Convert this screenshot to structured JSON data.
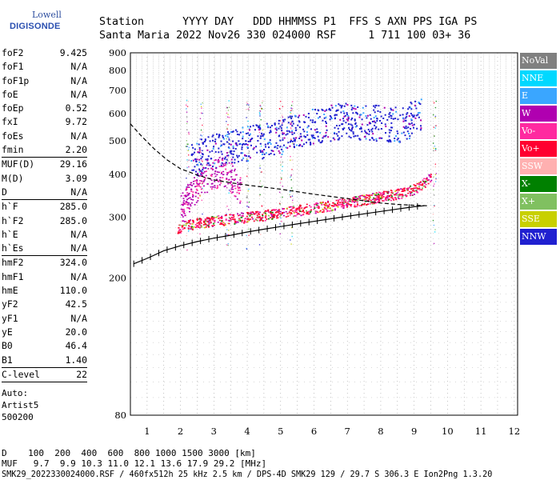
{
  "logo": {
    "line1": "Lowell",
    "line2": "DIGISONDE"
  },
  "header": {
    "row1": "Station      YYYY DAY   DDD HHMMSS P1  FFS S AXN PPS IGA PS",
    "row2": "Santa Maria 2022 Nov26 330 024000 RSF     1 711 100 03+ 36"
  },
  "params": [
    {
      "name": "foF2",
      "value": "9.425"
    },
    {
      "name": "foF1",
      "value": "N/A"
    },
    {
      "name": "foF1p",
      "value": "N/A"
    },
    {
      "name": "foE",
      "value": "N/A"
    },
    {
      "name": "foEp",
      "value": "0.52"
    },
    {
      "name": "fxI",
      "value": "9.72"
    },
    {
      "name": "foEs",
      "value": "N/A"
    },
    {
      "name": "fmin",
      "value": "2.20",
      "sep": true
    },
    {
      "name": "MUF(D)",
      "value": "29.16"
    },
    {
      "name": "M(D)",
      "value": "3.09"
    },
    {
      "name": "D",
      "value": "N/A",
      "sep": true
    },
    {
      "name": "h`F",
      "value": "285.0"
    },
    {
      "name": "h`F2",
      "value": "285.0"
    },
    {
      "name": "h`E",
      "value": "N/A"
    },
    {
      "name": "h`Es",
      "value": "N/A",
      "sep": true
    },
    {
      "name": "hmF2",
      "value": "324.0"
    },
    {
      "name": "hmF1",
      "value": "N/A"
    },
    {
      "name": "hmE",
      "value": "110.0"
    },
    {
      "name": "yF2",
      "value": "42.5"
    },
    {
      "name": "yF1",
      "value": "N/A"
    },
    {
      "name": "yE",
      "value": "20.0"
    },
    {
      "name": "B0",
      "value": "46.4"
    },
    {
      "name": "B1",
      "value": "1.40",
      "sep": true
    },
    {
      "name": "C-level",
      "value": "22",
      "sep": true
    }
  ],
  "extra": [
    "Auto:",
    "Artist5",
    "500200"
  ],
  "legend": [
    {
      "label": "NoVal",
      "color": "#808080",
      "text": "#ffffff"
    },
    {
      "label": "NNE",
      "color": "#00d8ff",
      "text": "#ffffff"
    },
    {
      "label": "E",
      "color": "#3aa6ff",
      "text": "#ffffff"
    },
    {
      "label": "W",
      "color": "#b000b0",
      "text": "#ffffff"
    },
    {
      "label": "Vo-",
      "color": "#ff2aa0",
      "text": "#ffffff"
    },
    {
      "label": "Vo+",
      "color": "#ff0030",
      "text": "#ffffff"
    },
    {
      "label": "SSW",
      "color": "#ffb0b0",
      "text": "#ffffff"
    },
    {
      "label": "X-",
      "color": "#008000",
      "text": "#ffffff"
    },
    {
      "label": "X+",
      "color": "#80c060",
      "text": "#ffffff"
    },
    {
      "label": "SSE",
      "color": "#c8d000",
      "text": "#ffffff"
    },
    {
      "label": "NNW",
      "color": "#2020d0",
      "text": "#ffffff"
    }
  ],
  "bottom": {
    "line1": "D    100  200  400  600  800 1000 1500 3000 [km]",
    "line2": "MUF   9.7  9.9 10.3 11.0 12.1 13.6 17.9 29.2 [MHz]",
    "line3": "SMK29_2022330024000.RSF / 460fx512h 25 kHz 2.5 km / DPS-4D SMK29 129 / 29.7 S 306.3 E Ion2Png 1.3.20"
  },
  "chart_data": {
    "type": "scatter",
    "title": "",
    "xlabel": "",
    "ylabel": "",
    "xlim": [
      0.5,
      12.1
    ],
    "ylim": [
      80,
      900
    ],
    "yscale": "log",
    "x_ticks": [
      1,
      2,
      3,
      4,
      5,
      6,
      7,
      8,
      9,
      10,
      11,
      12
    ],
    "y_ticks": [
      80,
      200,
      300,
      400,
      500,
      600,
      700,
      800,
      900
    ],
    "grid": true,
    "series": [
      {
        "color": "#000000",
        "style": "solid-with-ticks",
        "x": [
          0.6,
          1.0,
          1.5,
          2.0,
          2.5,
          3.0,
          3.5,
          4.0,
          4.5,
          5.0,
          5.5,
          6.0,
          6.5,
          7.0,
          7.5,
          8.0,
          8.5,
          9.0,
          9.3
        ],
        "y": [
          220,
          228,
          240,
          248,
          255,
          261,
          266,
          272,
          277,
          282,
          287,
          292,
          297,
          302,
          307,
          312,
          317,
          322,
          324
        ]
      },
      {
        "color": "#000000",
        "style": "dashed",
        "x": [
          0.5,
          0.8,
          1.2,
          1.6,
          2.0,
          2.5,
          3.0,
          3.5,
          4.0,
          5.0,
          6.0,
          7.0,
          8.0,
          8.5,
          9.0,
          9.4
        ],
        "y": [
          560,
          520,
          475,
          440,
          415,
          398,
          385,
          378,
          372,
          362,
          350,
          340,
          330,
          327,
          325,
          324
        ]
      },
      {
        "color": "#c01040",
        "style": "points",
        "x": [
          1.9,
          2.2,
          2.5,
          2.8,
          3.2,
          3.6,
          4.0,
          4.5,
          5.0,
          5.5,
          6.0,
          6.5,
          7.0,
          7.5,
          8.0,
          8.5,
          8.9,
          9.2,
          9.5
        ],
        "y": [
          280,
          285,
          290,
          292,
          295,
          298,
          301,
          305,
          310,
          315,
          320,
          326,
          332,
          338,
          345,
          352,
          360,
          372,
          395
        ]
      },
      {
        "color": "#2020d0",
        "style": "points",
        "x": [
          2.3,
          2.6,
          3.0,
          3.4,
          3.8,
          4.2,
          4.6,
          5.0,
          5.3,
          5.6,
          6.0,
          6.5,
          7.0,
          8.5,
          9.2
        ],
        "y": [
          440,
          455,
          470,
          480,
          490,
          500,
          510,
          520,
          530,
          545,
          555,
          570,
          580,
          560,
          600
        ]
      },
      {
        "color": "#b000b0",
        "style": "points",
        "x": [
          2.0,
          2.3,
          2.6,
          2.9,
          3.2,
          3.5,
          3.8
        ],
        "y": [
          320,
          350,
          380,
          400,
          410,
          395,
          360
        ]
      }
    ]
  }
}
